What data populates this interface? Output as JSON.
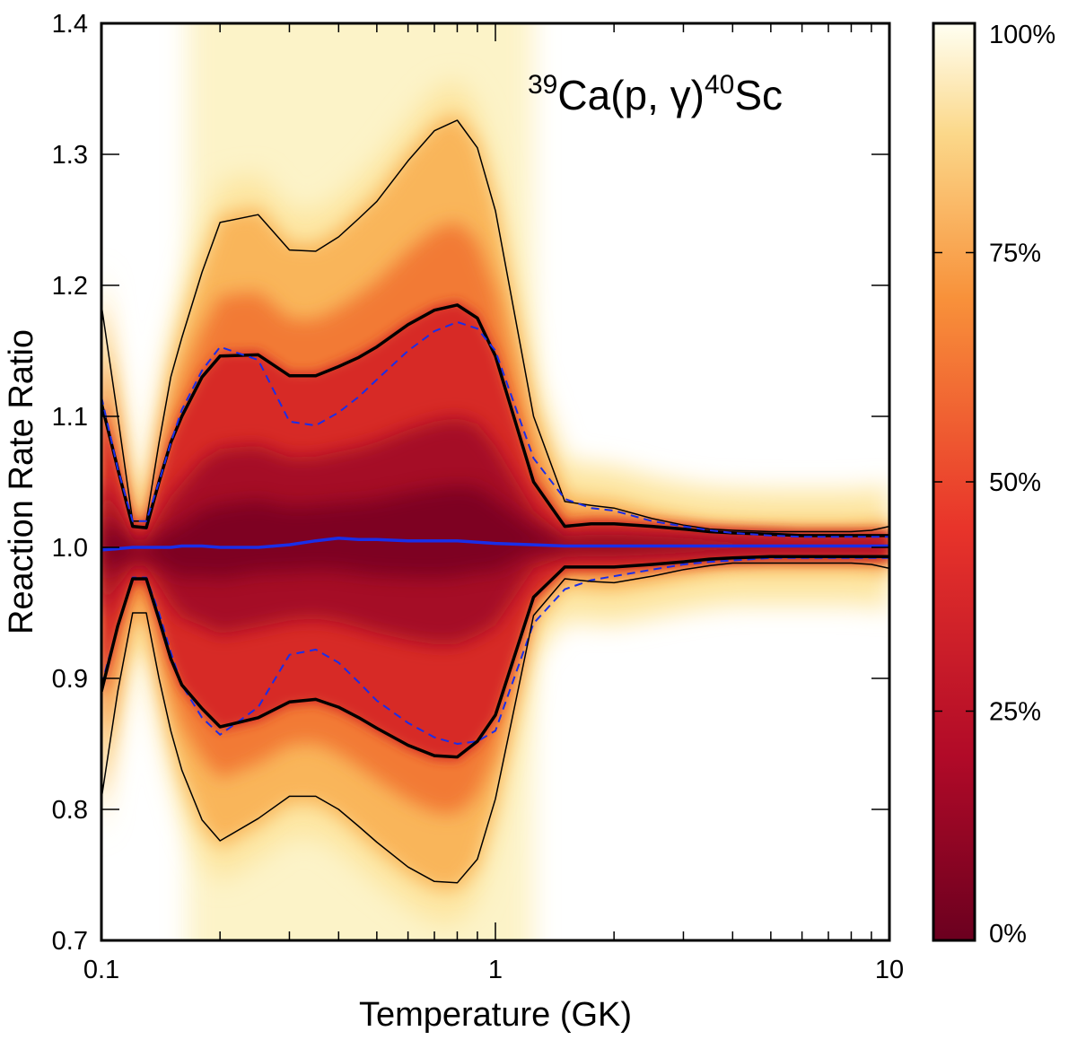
{
  "chart_data": {
    "type": "line",
    "title": {
      "mass_a": "39",
      "element_a": "Ca",
      "channel": "(p, γ)",
      "mass_b": "40",
      "element_b": "Sc"
    },
    "xlabel": "Temperature (GK)",
    "ylabel": "Reaction Rate Ratio",
    "xscale": "log",
    "xlim": [
      0.1,
      10
    ],
    "ylim": [
      0.7,
      1.4
    ],
    "x_ticks": [
      {
        "value": 0.1,
        "label": "0.1"
      },
      {
        "value": 1,
        "label": "1"
      },
      {
        "value": 10,
        "label": "10"
      }
    ],
    "y_ticks": [
      {
        "value": 0.7,
        "label": "0.7"
      },
      {
        "value": 0.8,
        "label": "0.8"
      },
      {
        "value": 0.9,
        "label": "0.9"
      },
      {
        "value": 1.0,
        "label": "1.0"
      },
      {
        "value": 1.1,
        "label": "1.1"
      },
      {
        "value": 1.2,
        "label": "1.2"
      },
      {
        "value": 1.3,
        "label": "1.3"
      },
      {
        "value": 1.4,
        "label": "1.4"
      }
    ],
    "colorbar": {
      "label_ticks": [
        {
          "value": 0,
          "label": "0%"
        },
        {
          "value": 25,
          "label": "25%"
        },
        {
          "value": 50,
          "label": "50%"
        },
        {
          "value": 75,
          "label": "75%"
        },
        {
          "value": 100,
          "label": "100%"
        }
      ],
      "colors": [
        "#6b001f",
        "#b10a28",
        "#e8342a",
        "#f8913a",
        "#fbd88a",
        "#fffff2"
      ]
    },
    "x": [
      0.1,
      0.11,
      0.12,
      0.13,
      0.14,
      0.15,
      0.16,
      0.18,
      0.2,
      0.25,
      0.3,
      0.35,
      0.4,
      0.45,
      0.5,
      0.6,
      0.7,
      0.8,
      0.9,
      1.0,
      1.25,
      1.5,
      1.75,
      2.0,
      2.5,
      3.0,
      3.5,
      4.0,
      5.0,
      6.0,
      7.0,
      8.0,
      9.0,
      10.0
    ],
    "series": [
      {
        "name": "upper-outer",
        "style": "thin-black",
        "values": [
          1.185,
          1.1,
          1.02,
          1.02,
          1.08,
          1.13,
          1.16,
          1.21,
          1.248,
          1.254,
          1.227,
          1.226,
          1.237,
          1.251,
          1.264,
          1.295,
          1.318,
          1.326,
          1.305,
          1.257,
          1.1,
          1.035,
          1.032,
          1.03,
          1.022,
          1.017,
          1.014,
          1.013,
          1.012,
          1.012,
          1.012,
          1.012,
          1.013,
          1.016
        ]
      },
      {
        "name": "upper-inner",
        "style": "thick-black",
        "values": [
          1.11,
          1.06,
          1.016,
          1.015,
          1.05,
          1.08,
          1.1,
          1.13,
          1.146,
          1.147,
          1.131,
          1.131,
          1.138,
          1.145,
          1.153,
          1.17,
          1.181,
          1.185,
          1.175,
          1.146,
          1.05,
          1.016,
          1.018,
          1.018,
          1.016,
          1.014,
          1.012,
          1.011,
          1.01,
          1.009,
          1.009,
          1.009,
          1.009,
          1.009
        ]
      },
      {
        "name": "upper-dashed",
        "style": "dashed-blue",
        "values": [
          1.115,
          1.06,
          1.02,
          1.02,
          1.05,
          1.08,
          1.105,
          1.135,
          1.153,
          1.143,
          1.096,
          1.093,
          1.103,
          1.115,
          1.128,
          1.15,
          1.165,
          1.172,
          1.167,
          1.15,
          1.068,
          1.037,
          1.03,
          1.028,
          1.02,
          1.016,
          1.013,
          1.011,
          1.009,
          1.008,
          1.008,
          1.008,
          1.008,
          1.008
        ]
      },
      {
        "name": "median",
        "style": "solid-blue",
        "values": [
          0.998,
          0.999,
          1.0,
          1.0,
          1.0,
          1.0,
          1.001,
          1.001,
          1.0,
          1.0,
          1.002,
          1.005,
          1.007,
          1.006,
          1.006,
          1.005,
          1.005,
          1.005,
          1.004,
          1.003,
          1.002,
          1.001,
          1.001,
          1.001,
          1.001,
          1.001,
          1.001,
          1.001,
          1.001,
          1.001,
          1.001,
          1.001,
          1.001,
          1.001
        ]
      },
      {
        "name": "lower-dashed",
        "style": "dashed-blue",
        "values": [
          0.895,
          0.94,
          0.977,
          0.977,
          0.95,
          0.92,
          0.895,
          0.87,
          0.857,
          0.878,
          0.918,
          0.922,
          0.912,
          0.897,
          0.883,
          0.866,
          0.855,
          0.85,
          0.852,
          0.86,
          0.942,
          0.968,
          0.975,
          0.978,
          0.983,
          0.987,
          0.989,
          0.99,
          0.992,
          0.992,
          0.992,
          0.992,
          0.992,
          0.992
        ]
      },
      {
        "name": "lower-inner",
        "style": "thick-black",
        "values": [
          0.89,
          0.94,
          0.976,
          0.976,
          0.945,
          0.915,
          0.895,
          0.877,
          0.863,
          0.87,
          0.882,
          0.884,
          0.878,
          0.87,
          0.862,
          0.849,
          0.841,
          0.84,
          0.852,
          0.872,
          0.962,
          0.985,
          0.985,
          0.985,
          0.987,
          0.989,
          0.991,
          0.992,
          0.993,
          0.993,
          0.993,
          0.993,
          0.993,
          0.993
        ]
      },
      {
        "name": "lower-outer",
        "style": "thin-black",
        "values": [
          0.808,
          0.89,
          0.95,
          0.95,
          0.9,
          0.86,
          0.83,
          0.792,
          0.776,
          0.793,
          0.81,
          0.81,
          0.8,
          0.787,
          0.775,
          0.756,
          0.745,
          0.744,
          0.762,
          0.808,
          0.948,
          0.976,
          0.974,
          0.973,
          0.978,
          0.983,
          0.986,
          0.988,
          0.988,
          0.988,
          0.988,
          0.988,
          0.987,
          0.984
        ]
      }
    ]
  }
}
